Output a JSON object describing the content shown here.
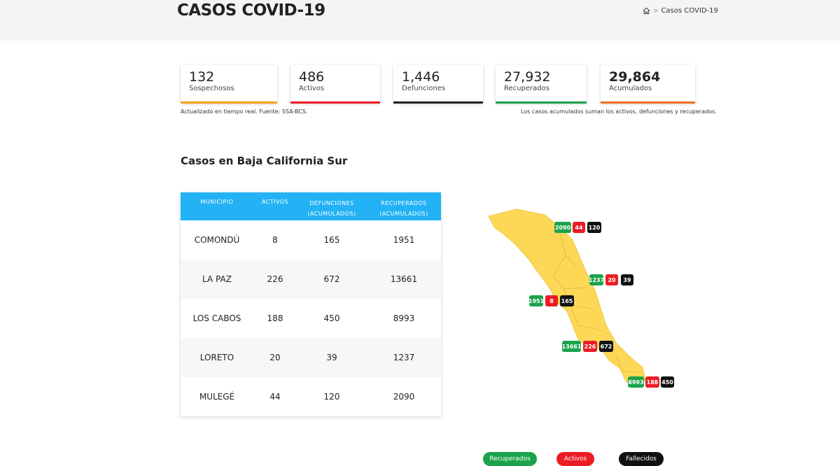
{
  "header": {
    "title": "CASOS COVID-19",
    "breadcrumb_current": "Casos COVID-19"
  },
  "stats": [
    {
      "value": "132",
      "label": "Sospechosos",
      "color": "#f7a21b"
    },
    {
      "value": "486",
      "label": "Activos",
      "color": "#ec1c24"
    },
    {
      "value": "1,446",
      "label": "Defunciones",
      "color": "#222222"
    },
    {
      "value": "27,932",
      "label": "Recuperados",
      "color": "#1ba34b"
    },
    {
      "value": "29,864",
      "label": "Acumulados",
      "color": "#f36f21"
    }
  ],
  "notes": {
    "left": "Actualizado en tiempo real. Fuente: SSA-BCS.",
    "right": "Los casos acumulados suman los activos, defunciones y recuperados."
  },
  "section_title": "Casos en Baja California Sur",
  "table": {
    "headers": {
      "municipio": "MUNICIPIO",
      "activos": "ACTIVOS",
      "defunciones_1": "DEFUNCIONES",
      "defunciones_2": "(ACUMULADOS)",
      "recuperados_1": "RECUPERADOS",
      "recuperados_2": "(ACUMULADOS)"
    },
    "rows": [
      {
        "municipio": "COMONDÚ",
        "activos": "8",
        "defunciones": "165",
        "recuperados": "1951"
      },
      {
        "municipio": "LA PAZ",
        "activos": "226",
        "defunciones": "672",
        "recuperados": "13661"
      },
      {
        "municipio": "LOS CABOS",
        "activos": "188",
        "defunciones": "450",
        "recuperados": "8993"
      },
      {
        "municipio": "LORETO",
        "activos": "20",
        "defunciones": "39",
        "recuperados": "1237"
      },
      {
        "municipio": "MULEGÉ",
        "activos": "44",
        "defunciones": "120",
        "recuperados": "2090"
      }
    ]
  },
  "map_labels": [
    {
      "recuperados": "2090",
      "activos": "44",
      "fallecidos": "120"
    },
    {
      "recuperados": "1237",
      "activos": "20",
      "fallecidos": "39"
    },
    {
      "recuperados": "1951",
      "activos": "8",
      "fallecidos": "165"
    },
    {
      "recuperados": "13661",
      "activos": "226",
      "fallecidos": "672"
    },
    {
      "recuperados": "8993",
      "activos": "188",
      "fallecidos": "450"
    }
  ],
  "legend": {
    "recuperados": "Recuperados",
    "activos": "Activos",
    "fallecidos": "Fallecidos"
  },
  "colors": {
    "table_header": "#23b2f5",
    "map_fill": "#fdd756",
    "green": "#1ba34b",
    "red": "#ec1c24",
    "black": "#111111"
  }
}
